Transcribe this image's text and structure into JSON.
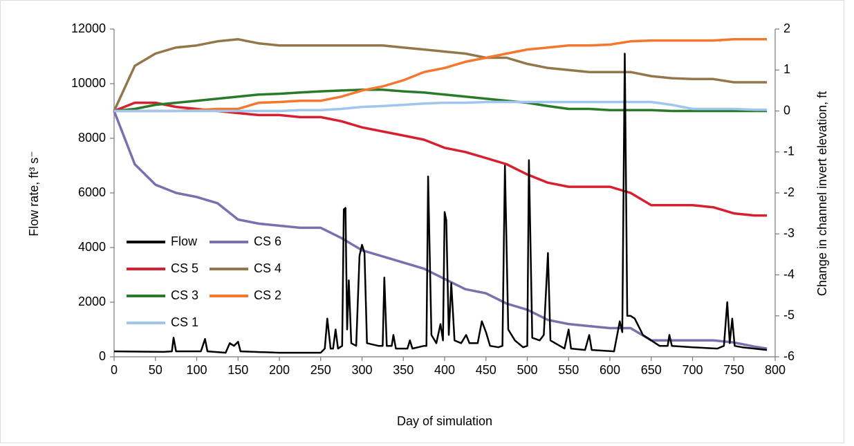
{
  "chart_data": {
    "type": "line",
    "x_label": "Day of simulation",
    "y_label": "Flow rate, ft³ s⁻",
    "y2_label": "Change in channel invert elevation, ft",
    "xlim": [
      0,
      800
    ],
    "xticks": [
      0,
      50,
      100,
      150,
      200,
      250,
      300,
      350,
      400,
      450,
      500,
      550,
      600,
      650,
      700,
      750,
      800
    ],
    "ylim": [
      0,
      12000
    ],
    "yticks": [
      0,
      2000,
      4000,
      6000,
      8000,
      10000,
      12000
    ],
    "y2lim": [
      -6,
      2
    ],
    "y2ticks": [
      -6,
      -5,
      -4,
      -3,
      -2,
      -1,
      0,
      1,
      2
    ],
    "grid": false,
    "legend": "left",
    "series": [
      {
        "name": "Flow",
        "color": "#000000",
        "x": [
          0,
          60,
          70,
          72,
          75,
          105,
          110,
          113,
          135,
          140,
          145,
          150,
          153,
          200,
          250,
          255,
          258,
          262,
          265,
          268,
          271,
          276,
          278,
          280,
          282,
          284,
          287,
          293,
          297,
          300,
          303,
          306,
          320,
          325,
          327,
          330,
          336,
          338,
          341,
          355,
          358,
          361,
          375,
          378,
          380,
          384,
          390,
          395,
          398,
          400,
          402,
          405,
          408,
          412,
          420,
          426,
          430,
          440,
          445,
          450,
          455,
          465,
          470,
          473,
          477,
          485,
          495,
          500,
          502,
          506,
          515,
          520,
          525,
          528,
          545,
          550,
          553,
          570,
          575,
          578,
          605,
          612,
          615,
          618,
          621,
          625,
          630,
          640,
          660,
          670,
          672,
          675,
          700,
          730,
          738,
          742,
          745,
          748,
          751,
          760,
          790
        ],
        "values": [
          200,
          180,
          200,
          700,
          200,
          200,
          650,
          200,
          150,
          500,
          400,
          550,
          200,
          150,
          150,
          300,
          1400,
          300,
          300,
          1000,
          300,
          400,
          5400,
          5450,
          1000,
          2800,
          500,
          400,
          3700,
          4100,
          3800,
          500,
          400,
          400,
          2900,
          400,
          400,
          800,
          300,
          300,
          600,
          300,
          400,
          400,
          6600,
          800,
          500,
          1200,
          600,
          5300,
          5000,
          800,
          2700,
          600,
          500,
          800,
          500,
          500,
          1300,
          900,
          400,
          350,
          400,
          7000,
          1000,
          600,
          350,
          400,
          7200,
          700,
          600,
          800,
          3800,
          600,
          300,
          1000,
          300,
          250,
          800,
          250,
          200,
          1300,
          900,
          11100,
          1500,
          1500,
          1400,
          800,
          400,
          400,
          800,
          400,
          350,
          300,
          400,
          2000,
          500,
          1400,
          400,
          350,
          250
        ]
      },
      {
        "name": "CS 6",
        "color": "#7b6fad",
        "axis": "y2",
        "x": [
          0,
          25,
          50,
          75,
          100,
          125,
          150,
          175,
          200,
          225,
          250,
          275,
          300,
          325,
          350,
          375,
          400,
          425,
          450,
          475,
          500,
          525,
          550,
          575,
          600,
          625,
          650,
          675,
          700,
          725,
          750,
          775,
          790
        ],
        "values": [
          0,
          -1.3,
          -1.8,
          -2.0,
          -2.1,
          -2.25,
          -2.65,
          -2.75,
          -2.8,
          -2.85,
          -2.85,
          -3.1,
          -3.4,
          -3.55,
          -3.7,
          -3.85,
          -4.1,
          -4.35,
          -4.45,
          -4.7,
          -4.85,
          -5.1,
          -5.2,
          -5.25,
          -5.3,
          -5.3,
          -5.6,
          -5.6,
          -5.6,
          -5.6,
          -5.65,
          -5.75,
          -5.8
        ]
      },
      {
        "name": "CS 5",
        "color": "#d7202f",
        "axis": "y2",
        "x": [
          0,
          25,
          50,
          75,
          100,
          125,
          150,
          175,
          200,
          225,
          250,
          275,
          300,
          325,
          350,
          375,
          400,
          425,
          450,
          475,
          500,
          525,
          550,
          575,
          600,
          625,
          650,
          675,
          700,
          725,
          750,
          775,
          790
        ],
        "values": [
          0,
          0.2,
          0.2,
          0.1,
          0.05,
          0,
          -0.05,
          -0.1,
          -0.1,
          -0.15,
          -0.15,
          -0.25,
          -0.4,
          -0.5,
          -0.6,
          -0.7,
          -0.9,
          -1.0,
          -1.15,
          -1.3,
          -1.55,
          -1.75,
          -1.85,
          -1.85,
          -1.85,
          -2.0,
          -2.3,
          -2.3,
          -2.3,
          -2.35,
          -2.5,
          -2.55,
          -2.55
        ]
      },
      {
        "name": "CS 4",
        "color": "#93764a",
        "axis": "y2",
        "x": [
          0,
          25,
          50,
          75,
          100,
          125,
          150,
          175,
          200,
          225,
          250,
          275,
          300,
          325,
          350,
          375,
          400,
          425,
          450,
          475,
          500,
          525,
          550,
          575,
          600,
          625,
          650,
          675,
          700,
          725,
          750,
          775,
          790
        ],
        "values": [
          0,
          1.1,
          1.4,
          1.55,
          1.6,
          1.7,
          1.75,
          1.65,
          1.6,
          1.6,
          1.6,
          1.6,
          1.6,
          1.6,
          1.55,
          1.5,
          1.45,
          1.4,
          1.3,
          1.3,
          1.15,
          1.05,
          1.0,
          0.95,
          0.95,
          0.95,
          0.85,
          0.8,
          0.78,
          0.78,
          0.7,
          0.7,
          0.7
        ]
      },
      {
        "name": "CS 3",
        "color": "#2a7a2a",
        "axis": "y2",
        "x": [
          0,
          25,
          50,
          75,
          100,
          125,
          150,
          175,
          200,
          225,
          250,
          275,
          300,
          325,
          350,
          375,
          400,
          425,
          450,
          475,
          500,
          525,
          550,
          575,
          600,
          625,
          650,
          675,
          700,
          725,
          750,
          775,
          790
        ],
        "values": [
          0,
          0.05,
          0.15,
          0.2,
          0.25,
          0.3,
          0.35,
          0.4,
          0.42,
          0.45,
          0.48,
          0.5,
          0.52,
          0.52,
          0.48,
          0.45,
          0.4,
          0.35,
          0.3,
          0.25,
          0.2,
          0.12,
          0.05,
          0.05,
          0.02,
          0.02,
          0.02,
          0,
          0,
          0,
          0,
          0,
          0
        ]
      },
      {
        "name": "CS 2",
        "color": "#f5772d",
        "axis": "y2",
        "x": [
          0,
          25,
          50,
          75,
          100,
          125,
          150,
          175,
          200,
          225,
          250,
          275,
          300,
          325,
          350,
          375,
          400,
          425,
          450,
          475,
          500,
          525,
          550,
          575,
          600,
          625,
          650,
          675,
          700,
          725,
          750,
          775,
          790
        ],
        "values": [
          0,
          0,
          0,
          0,
          0.02,
          0.05,
          0.05,
          0.2,
          0.22,
          0.25,
          0.25,
          0.35,
          0.5,
          0.6,
          0.75,
          0.95,
          1.05,
          1.2,
          1.3,
          1.4,
          1.5,
          1.55,
          1.6,
          1.6,
          1.62,
          1.7,
          1.72,
          1.72,
          1.72,
          1.72,
          1.75,
          1.75,
          1.75
        ]
      },
      {
        "name": "CS 1",
        "color": "#9ec6ee",
        "axis": "y2",
        "x": [
          0,
          25,
          50,
          75,
          100,
          125,
          150,
          175,
          200,
          225,
          250,
          275,
          300,
          325,
          350,
          375,
          400,
          425,
          450,
          475,
          500,
          525,
          550,
          575,
          600,
          625,
          650,
          675,
          700,
          725,
          750,
          775,
          790
        ],
        "values": [
          0,
          0,
          0,
          0,
          0,
          0,
          0,
          0,
          0,
          0.02,
          0.02,
          0.05,
          0.1,
          0.12,
          0.15,
          0.18,
          0.2,
          0.2,
          0.22,
          0.22,
          0.22,
          0.22,
          0.22,
          0.22,
          0.22,
          0.22,
          0.22,
          0.15,
          0.05,
          0.05,
          0.05,
          0.03,
          0.03
        ]
      }
    ]
  }
}
